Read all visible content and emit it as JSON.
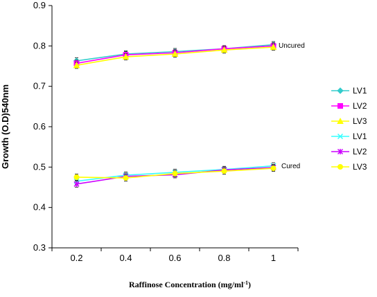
{
  "chart_data": {
    "type": "line",
    "title": "",
    "xlabel": "Raffinose Concentration (mg/ml",
    "xlabel_sup": "-1",
    "xlabel_end": ")",
    "ylabel": "Growth (O.D)540nm",
    "x": [
      0.2,
      0.4,
      0.6,
      0.8,
      1
    ],
    "x_tick_labels": [
      "0.2",
      "0.4",
      "0.6",
      "0.8",
      "1"
    ],
    "ylim": [
      0.3,
      0.9
    ],
    "y_tick_labels": [
      "0.3",
      "0.4",
      "0.5",
      "0.6",
      "0.7",
      "0.8",
      "0.9"
    ],
    "grid": false,
    "legend_position": "right",
    "annotations": {
      "uncured": "Uncured",
      "cured": "Cured"
    },
    "series": [
      {
        "name": "LV1",
        "group": "Uncured",
        "marker": "diamond",
        "color": "#33CCCC",
        "values": [
          0.763,
          0.78,
          0.786,
          0.793,
          0.803
        ]
      },
      {
        "name": "LV2",
        "group": "Uncured",
        "marker": "square",
        "color": "#FF00FF",
        "values": [
          0.757,
          0.778,
          0.783,
          0.793,
          0.8
        ]
      },
      {
        "name": "LV3",
        "group": "Uncured",
        "marker": "triangle",
        "color": "#FFFF00",
        "values": [
          0.752,
          0.773,
          0.78,
          0.79,
          0.797
        ]
      },
      {
        "name": "LV1",
        "group": "Cured",
        "marker": "x",
        "color": "#33FFFF",
        "values": [
          0.465,
          0.48,
          0.487,
          0.494,
          0.503
        ]
      },
      {
        "name": "LV2",
        "group": "Cured",
        "marker": "star",
        "color": "#CC00FF",
        "values": [
          0.458,
          0.477,
          0.481,
          0.493,
          0.499
        ]
      },
      {
        "name": "LV3",
        "group": "Cured",
        "marker": "circle",
        "color": "#FFFF00",
        "values": [
          0.475,
          0.473,
          0.484,
          0.49,
          0.497
        ]
      }
    ]
  }
}
